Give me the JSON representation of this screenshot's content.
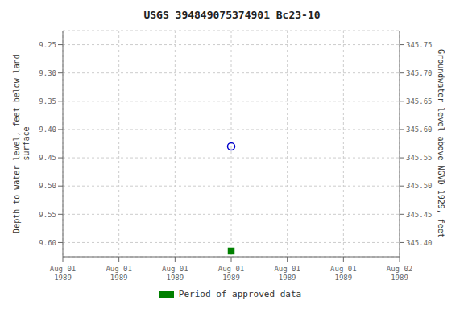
{
  "chart_data": {
    "type": "scatter",
    "title": "USGS 394849075374901 Bc23-10",
    "y_label": "Depth to water level, feet below land\nsurface",
    "y2_label": "Groundwater level above NGVD 1929, feet",
    "categories": [
      "Aug 01\n1989",
      "Aug 01\n1989",
      "Aug 01\n1989",
      "Aug 01\n1989",
      "Aug 01\n1989",
      "Aug 01\n1989",
      "Aug 02\n1989"
    ],
    "series": [
      {
        "color": "#0000cc",
        "marker": "circle-open",
        "values": [
          null,
          null,
          null,
          9.43,
          null,
          null,
          null
        ]
      },
      {
        "name": "Period of approved data",
        "color": "#008000",
        "marker": "square",
        "values": [
          null,
          null,
          null,
          9.615,
          null,
          null,
          null
        ]
      }
    ],
    "ylim": [
      9.625,
      9.225
    ],
    "yticks": [
      9.25,
      {
        "value": 9.3,
        "label": "9.30"
      },
      9.35,
      {
        "value": 9.4,
        "label": "9.40"
      },
      9.45,
      {
        "value": 9.5,
        "label": "9.50"
      },
      9.55,
      {
        "value": 9.6,
        "label": "9.60"
      }
    ],
    "y2lim": [
      345.375,
      345.775
    ],
    "y2ticks": [
      345.75,
      {
        "value": 345.7,
        "label": "345.70"
      },
      345.65,
      {
        "value": 345.6,
        "label": "345.60"
      },
      345.55,
      {
        "value": 345.5,
        "label": "345.50"
      },
      345.45,
      {
        "value": 345.4,
        "label": "345.40"
      }
    ],
    "grid": true,
    "legend": "bottom"
  }
}
